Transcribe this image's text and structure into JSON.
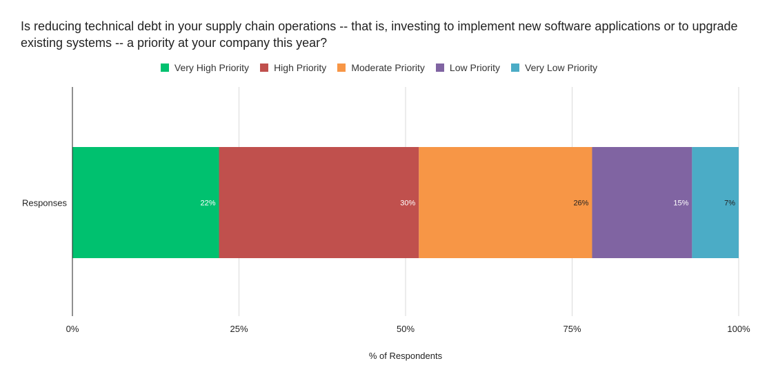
{
  "chart_data": {
    "type": "bar",
    "orientation": "horizontal",
    "stacked": true,
    "title": "Is reducing technical debt in your supply chain operations -- that is, investing to implement new software applications or to upgrade existing systems -- a priority at your company this year?",
    "categories": [
      "Responses"
    ],
    "xlabel": "% of Respondents",
    "ylabel": "",
    "xlim": [
      0,
      100
    ],
    "xticks": [
      "0%",
      "25%",
      "50%",
      "75%",
      "100%"
    ],
    "legend_position": "top",
    "grid": true,
    "series": [
      {
        "name": "Very High Priority",
        "values": [
          22
        ],
        "label": "22%",
        "color": "#00c16f",
        "label_color": "#ffffff"
      },
      {
        "name": "High Priority",
        "values": [
          30
        ],
        "label": "30%",
        "color": "#c0504d",
        "label_color": "#ffffff"
      },
      {
        "name": "Moderate Priority",
        "values": [
          26
        ],
        "label": "26%",
        "color": "#f79646",
        "label_color": "#222222"
      },
      {
        "name": "Low Priority",
        "values": [
          15
        ],
        "label": "15%",
        "color": "#8064a2",
        "label_color": "#ffffff"
      },
      {
        "name": "Very Low Priority",
        "values": [
          7
        ],
        "label": "7%",
        "color": "#4bacc6",
        "label_color": "#222222"
      }
    ]
  }
}
